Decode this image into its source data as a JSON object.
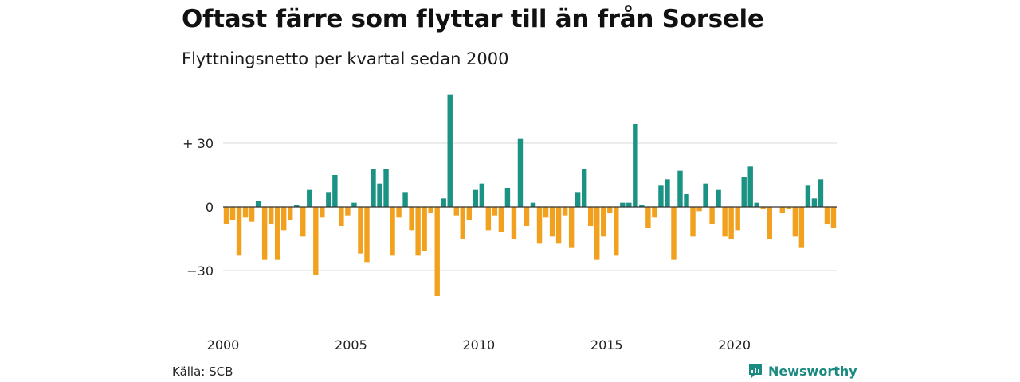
{
  "header": {
    "title": "Oftast färre som flyttar till än från Sorsele",
    "subtitle": "Flyttningsnetto per kvartal sedan 2000"
  },
  "footer": {
    "source": "Källa: SCB",
    "brand": "Newsworthy",
    "brand_icon": "chart-bubble-icon"
  },
  "colors": {
    "positive": "#1b9384",
    "negative": "#f2a11e",
    "grid": "#d9d9d9",
    "zero_line": "#333333",
    "brand": "#1b8a80"
  },
  "chart_data": {
    "type": "bar",
    "x_ticks": [
      "2000",
      "2005",
      "2010",
      "2015",
      "2020"
    ],
    "y_ticks": [
      {
        "value": 30,
        "label": "+ 30"
      },
      {
        "value": 0,
        "label": "0"
      },
      {
        "value": -30,
        "label": "−30"
      }
    ],
    "ylim": [
      -45,
      55
    ],
    "grid": true,
    "start_year": 2000,
    "quarters_per_year": 4,
    "values": [
      -8,
      -6,
      -23,
      -5,
      -7,
      3,
      -25,
      -8,
      -25,
      -11,
      -6,
      1,
      -14,
      8,
      -32,
      -5,
      7,
      15,
      -9,
      -4,
      2,
      -22,
      -26,
      18,
      11,
      18,
      -23,
      -5,
      7,
      -11,
      -23,
      -21,
      -3,
      -42,
      4,
      53,
      -4,
      -15,
      -6,
      8,
      11,
      -11,
      -4,
      -12,
      9,
      -15,
      32,
      -9,
      2,
      -17,
      -5,
      -14,
      -17,
      -4,
      -19,
      7,
      18,
      -9,
      -25,
      -14,
      -3,
      -23,
      2,
      2,
      39,
      1,
      -10,
      -5,
      10,
      13,
      -25,
      17,
      6,
      -14,
      -2,
      11,
      -8,
      8,
      -14,
      -15,
      -11,
      14,
      19,
      2,
      -1,
      -15,
      0,
      -3,
      -1,
      -14,
      -19,
      10,
      4,
      13,
      -8,
      -10
    ]
  }
}
